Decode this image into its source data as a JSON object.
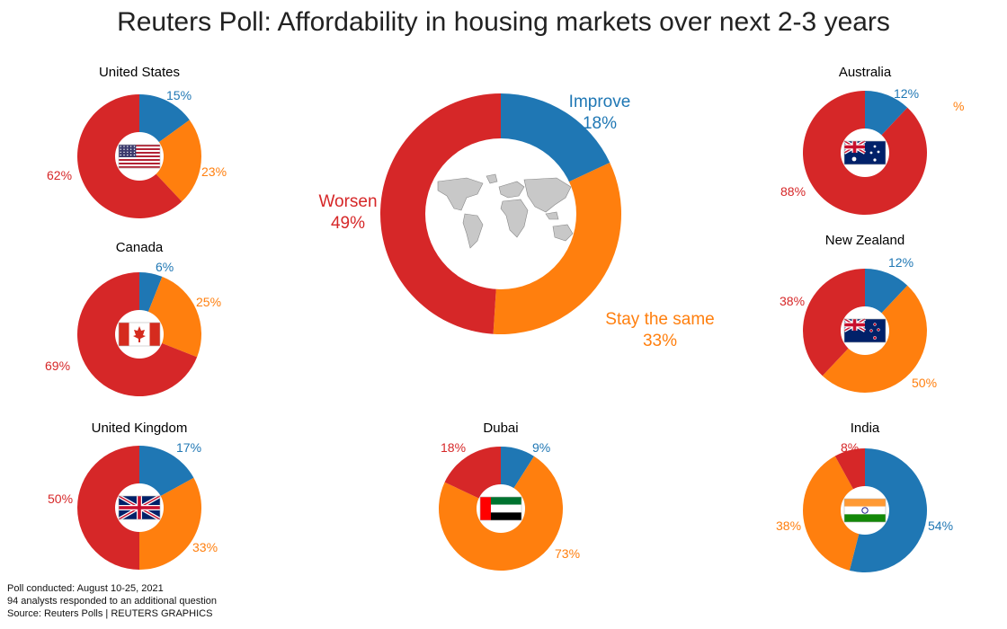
{
  "title": "Reuters Poll: Affordability in housing markets over next 2-3 years",
  "colors": {
    "improve": "#1f77b4",
    "same": "#ff7f0e",
    "worse": "#d62728"
  },
  "chart_data": [
    {
      "type": "pie",
      "title": "Global",
      "categories": [
        "Improve",
        "Stay the same",
        "Worsen"
      ],
      "values": [
        18,
        33,
        49
      ],
      "labels": [
        "18%",
        "33%",
        "49%"
      ]
    },
    {
      "type": "pie",
      "title": "United States",
      "categories": [
        "Improve",
        "Stay the same",
        "Worsen"
      ],
      "values": [
        15,
        23,
        62
      ],
      "labels": [
        "15%",
        "23%",
        "62%"
      ]
    },
    {
      "type": "pie",
      "title": "Canada",
      "categories": [
        "Improve",
        "Stay the same",
        "Worsen"
      ],
      "values": [
        6,
        25,
        69
      ],
      "labels": [
        "6%",
        "25%",
        "69%"
      ]
    },
    {
      "type": "pie",
      "title": "United Kingdom",
      "categories": [
        "Improve",
        "Stay the same",
        "Worsen"
      ],
      "values": [
        17,
        33,
        50
      ],
      "labels": [
        "17%",
        "33%",
        "50%"
      ]
    },
    {
      "type": "pie",
      "title": "Dubai",
      "categories": [
        "Improve",
        "Stay the same",
        "Worsen"
      ],
      "values": [
        9,
        73,
        18
      ],
      "labels": [
        "9%",
        "73%",
        "18%"
      ]
    },
    {
      "type": "pie",
      "title": "Australia",
      "categories": [
        "Improve",
        "Stay the same",
        "Worsen"
      ],
      "values": [
        12,
        0,
        88
      ],
      "labels": [
        "12%",
        "%",
        "88%"
      ]
    },
    {
      "type": "pie",
      "title": "New Zealand",
      "categories": [
        "Improve",
        "Stay the same",
        "Worsen"
      ],
      "values": [
        12,
        50,
        38
      ],
      "labels": [
        "12%",
        "50%",
        "38%"
      ]
    },
    {
      "type": "pie",
      "title": "India",
      "categories": [
        "Improve",
        "Stay the same",
        "Worsen"
      ],
      "values": [
        54,
        38,
        8
      ],
      "labels": [
        "54%",
        "38%",
        "8%"
      ]
    }
  ],
  "notes": {
    "line1": "Poll conducted: August 10-25, 2021",
    "line2": "94 analysts responded to an additional question",
    "line3": "Source: Reuters Polls  | REUTERS GRAPHICS"
  }
}
